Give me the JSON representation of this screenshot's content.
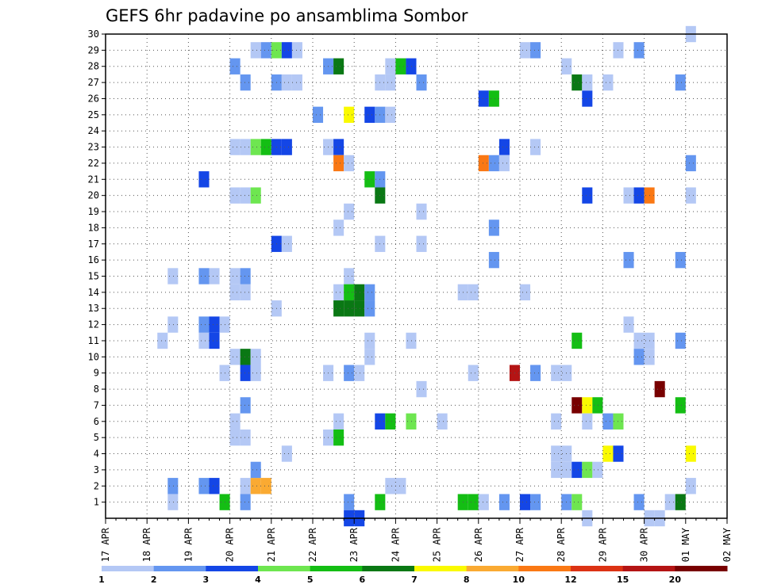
{
  "chart_data": {
    "type": "heatmap",
    "title": "GEFS 6hr padavine po ansamblima Sombor",
    "xlabel": "",
    "ylabel": "",
    "x_tick_labels": [
      "17 APR",
      "18 APR",
      "19 APR",
      "20 APR",
      "21 APR",
      "22 APR",
      "23 APR",
      "24 APR",
      "25 APR",
      "26 APR",
      "27 APR",
      "28 APR",
      "29 APR",
      "30 APR",
      "01 MAY",
      "02 MAY"
    ],
    "y_tick_labels": [
      "1",
      "2",
      "3",
      "4",
      "5",
      "6",
      "7",
      "8",
      "9",
      "10",
      "11",
      "12",
      "13",
      "14",
      "15",
      "16",
      "17",
      "18",
      "19",
      "20",
      "21",
      "22",
      "23",
      "24",
      "25",
      "26",
      "27",
      "28",
      "29",
      "30"
    ],
    "xlim": [
      0,
      15
    ],
    "ylim": [
      0,
      30
    ],
    "time_step_days": 0.25,
    "grid": "dotted",
    "legend": {
      "placement": "bottom",
      "labels": [
        "1",
        "2",
        "3",
        "4",
        "5",
        "6",
        "7",
        "8",
        "10",
        "12",
        "15",
        "20"
      ],
      "colors": [
        "#b4c8f5",
        "#6496f0",
        "#1446e6",
        "#6ee650",
        "#14be14",
        "#0a7814",
        "#fafa00",
        "#faaa32",
        "#fa7814",
        "#dc3214",
        "#b41414",
        "#780000"
      ]
    },
    "cells": [
      {
        "day": 1.5,
        "member": 12,
        "class": 0
      },
      {
        "day": 1.5,
        "member": 1,
        "class": 0
      },
      {
        "day": 1.5,
        "member": 2,
        "class": 1
      },
      {
        "day": 1.5,
        "member": 15,
        "class": 0
      },
      {
        "day": 1.25,
        "member": 11,
        "class": 0
      },
      {
        "day": 2.25,
        "member": 11,
        "class": 0
      },
      {
        "day": 2.25,
        "member": 12,
        "class": 1
      },
      {
        "day": 2.25,
        "member": 15,
        "class": 1
      },
      {
        "day": 2.25,
        "member": 2,
        "class": 1
      },
      {
        "day": 2.5,
        "member": 12,
        "class": 2
      },
      {
        "day": 2.5,
        "member": 11,
        "class": 2
      },
      {
        "day": 2.5,
        "member": 2,
        "class": 2
      },
      {
        "day": 2.5,
        "member": 15,
        "class": 0
      },
      {
        "day": 2.75,
        "member": 12,
        "class": 0
      },
      {
        "day": 2.75,
        "member": 9,
        "class": 0
      },
      {
        "day": 2.75,
        "member": 1,
        "class": 4
      },
      {
        "day": 2.25,
        "member": 21,
        "class": 2
      },
      {
        "day": 3.0,
        "member": 10,
        "class": 0
      },
      {
        "day": 3.0,
        "member": 6,
        "class": 0
      },
      {
        "day": 3.0,
        "member": 5,
        "class": 0
      },
      {
        "day": 3.0,
        "member": 14,
        "class": 0
      },
      {
        "day": 3.0,
        "member": 15,
        "class": 0
      },
      {
        "day": 3.0,
        "member": 20,
        "class": 0
      },
      {
        "day": 3.0,
        "member": 23,
        "class": 0
      },
      {
        "day": 3.0,
        "member": 28,
        "class": 1
      },
      {
        "day": 3.25,
        "member": 10,
        "class": 5
      },
      {
        "day": 3.25,
        "member": 9,
        "class": 2
      },
      {
        "day": 3.25,
        "member": 7,
        "class": 1
      },
      {
        "day": 3.25,
        "member": 5,
        "class": 0
      },
      {
        "day": 3.25,
        "member": 2,
        "class": 0
      },
      {
        "day": 3.25,
        "member": 1,
        "class": 1
      },
      {
        "day": 3.25,
        "member": 14,
        "class": 0
      },
      {
        "day": 3.25,
        "member": 15,
        "class": 1
      },
      {
        "day": 3.25,
        "member": 20,
        "class": 0
      },
      {
        "day": 3.25,
        "member": 23,
        "class": 0
      },
      {
        "day": 3.25,
        "member": 27,
        "class": 1
      },
      {
        "day": 3.5,
        "member": 10,
        "class": 0
      },
      {
        "day": 3.5,
        "member": 9,
        "class": 0
      },
      {
        "day": 3.5,
        "member": 2,
        "class": 7
      },
      {
        "day": 3.5,
        "member": 3,
        "class": 1
      },
      {
        "day": 3.5,
        "member": 20,
        "class": 3
      },
      {
        "day": 3.5,
        "member": 23,
        "class": 3
      },
      {
        "day": 3.5,
        "member": 29,
        "class": 0
      },
      {
        "day": 3.75,
        "member": 2,
        "class": 7
      },
      {
        "day": 3.75,
        "member": 23,
        "class": 4
      },
      {
        "day": 3.75,
        "member": 29,
        "class": 1
      },
      {
        "day": 4.0,
        "member": 13,
        "class": 0
      },
      {
        "day": 4.0,
        "member": 17,
        "class": 2
      },
      {
        "day": 4.0,
        "member": 23,
        "class": 2
      },
      {
        "day": 4.0,
        "member": 27,
        "class": 1
      },
      {
        "day": 4.0,
        "member": 29,
        "class": 3
      },
      {
        "day": 4.25,
        "member": 17,
        "class": 0
      },
      {
        "day": 4.25,
        "member": 4,
        "class": 0
      },
      {
        "day": 4.25,
        "member": 29,
        "class": 2
      },
      {
        "day": 4.25,
        "member": 27,
        "class": 0
      },
      {
        "day": 4.25,
        "member": 23,
        "class": 2
      },
      {
        "day": 4.5,
        "member": 27,
        "class": 0
      },
      {
        "day": 4.5,
        "member": 29,
        "class": 0
      },
      {
        "day": 5.0,
        "member": 25,
        "class": 1
      },
      {
        "day": 5.25,
        "member": 28,
        "class": 1
      },
      {
        "day": 5.25,
        "member": 23,
        "class": 0
      },
      {
        "day": 5.25,
        "member": 9,
        "class": 0
      },
      {
        "day": 5.25,
        "member": 5,
        "class": 0
      },
      {
        "day": 5.5,
        "member": 28,
        "class": 5
      },
      {
        "day": 5.5,
        "member": 23,
        "class": 2
      },
      {
        "day": 5.5,
        "member": 22,
        "class": 8
      },
      {
        "day": 5.5,
        "member": 18,
        "class": 0
      },
      {
        "day": 5.5,
        "member": 14,
        "class": 0
      },
      {
        "day": 5.5,
        "member": 13,
        "class": 5
      },
      {
        "day": 5.5,
        "member": 6,
        "class": 0
      },
      {
        "day": 5.5,
        "member": 5,
        "class": 4
      },
      {
        "day": 5.75,
        "member": 25,
        "class": 6
      },
      {
        "day": 5.75,
        "member": 22,
        "class": 0
      },
      {
        "day": 5.75,
        "member": 19,
        "class": 0
      },
      {
        "day": 5.75,
        "member": 15,
        "class": 0
      },
      {
        "day": 5.75,
        "member": 14,
        "class": 4
      },
      {
        "day": 5.75,
        "member": 13,
        "class": 5
      },
      {
        "day": 5.75,
        "member": 9,
        "class": 1
      },
      {
        "day": 5.75,
        "member": 1,
        "class": 1
      },
      {
        "day": 5.75,
        "member": 0,
        "class": 2
      },
      {
        "day": 6.0,
        "member": 14,
        "class": 5
      },
      {
        "day": 6.0,
        "member": 13,
        "class": 5
      },
      {
        "day": 6.0,
        "member": 9,
        "class": 0
      },
      {
        "day": 6.0,
        "member": 0,
        "class": 2
      },
      {
        "day": 6.25,
        "member": 25,
        "class": 2
      },
      {
        "day": 6.25,
        "member": 21,
        "class": 4
      },
      {
        "day": 6.25,
        "member": 14,
        "class": 1
      },
      {
        "day": 6.25,
        "member": 13,
        "class": 1
      },
      {
        "day": 6.25,
        "member": 11,
        "class": 0
      },
      {
        "day": 6.25,
        "member": 10,
        "class": 0
      },
      {
        "day": 6.5,
        "member": 27,
        "class": 0
      },
      {
        "day": 6.5,
        "member": 25,
        "class": 1
      },
      {
        "day": 6.5,
        "member": 21,
        "class": 1
      },
      {
        "day": 6.5,
        "member": 20,
        "class": 5
      },
      {
        "day": 6.5,
        "member": 17,
        "class": 0
      },
      {
        "day": 6.5,
        "member": 6,
        "class": 2
      },
      {
        "day": 6.5,
        "member": 1,
        "class": 4
      },
      {
        "day": 6.75,
        "member": 28,
        "class": 0
      },
      {
        "day": 6.75,
        "member": 27,
        "class": 0
      },
      {
        "day": 6.75,
        "member": 25,
        "class": 0
      },
      {
        "day": 6.75,
        "member": 6,
        "class": 4
      },
      {
        "day": 6.75,
        "member": 2,
        "class": 0
      },
      {
        "day": 7.0,
        "member": 28,
        "class": 4
      },
      {
        "day": 7.0,
        "member": 2,
        "class": 0
      },
      {
        "day": 7.25,
        "member": 28,
        "class": 2
      },
      {
        "day": 7.25,
        "member": 11,
        "class": 0
      },
      {
        "day": 7.25,
        "member": 6,
        "class": 3
      },
      {
        "day": 7.5,
        "member": 27,
        "class": 1
      },
      {
        "day": 7.5,
        "member": 19,
        "class": 0
      },
      {
        "day": 7.5,
        "member": 17,
        "class": 0
      },
      {
        "day": 7.5,
        "member": 8,
        "class": 0
      },
      {
        "day": 8.0,
        "member": 6,
        "class": 0
      },
      {
        "day": 8.5,
        "member": 14,
        "class": 0
      },
      {
        "day": 8.5,
        "member": 1,
        "class": 4
      },
      {
        "day": 8.75,
        "member": 14,
        "class": 0
      },
      {
        "day": 8.75,
        "member": 9,
        "class": 0
      },
      {
        "day": 8.75,
        "member": 1,
        "class": 4
      },
      {
        "day": 9.0,
        "member": 26,
        "class": 2
      },
      {
        "day": 9.0,
        "member": 22,
        "class": 8
      },
      {
        "day": 9.0,
        "member": 1,
        "class": 0
      },
      {
        "day": 9.25,
        "member": 26,
        "class": 4
      },
      {
        "day": 9.25,
        "member": 22,
        "class": 1
      },
      {
        "day": 9.25,
        "member": 18,
        "class": 1
      },
      {
        "day": 9.25,
        "member": 16,
        "class": 1
      },
      {
        "day": 9.5,
        "member": 23,
        "class": 2
      },
      {
        "day": 9.5,
        "member": 22,
        "class": 0
      },
      {
        "day": 9.5,
        "member": 1,
        "class": 1
      },
      {
        "day": 9.75,
        "member": 9,
        "class": 10
      },
      {
        "day": 10.0,
        "member": 29,
        "class": 0
      },
      {
        "day": 10.0,
        "member": 14,
        "class": 0
      },
      {
        "day": 10.0,
        "member": 1,
        "class": 2
      },
      {
        "day": 10.25,
        "member": 29,
        "class": 1
      },
      {
        "day": 10.25,
        "member": 23,
        "class": 0
      },
      {
        "day": 10.25,
        "member": 9,
        "class": 1
      },
      {
        "day": 10.25,
        "member": 1,
        "class": 1
      },
      {
        "day": 10.75,
        "member": 9,
        "class": 0
      },
      {
        "day": 10.75,
        "member": 4,
        "class": 0
      },
      {
        "day": 10.75,
        "member": 3,
        "class": 0
      },
      {
        "day": 10.75,
        "member": 6,
        "class": 0
      },
      {
        "day": 11.0,
        "member": 9,
        "class": 0
      },
      {
        "day": 11.0,
        "member": 4,
        "class": 0
      },
      {
        "day": 11.0,
        "member": 3,
        "class": 0
      },
      {
        "day": 11.0,
        "member": 28,
        "class": 0
      },
      {
        "day": 11.0,
        "member": 1,
        "class": 1
      },
      {
        "day": 11.25,
        "member": 27,
        "class": 5
      },
      {
        "day": 11.25,
        "member": 11,
        "class": 4
      },
      {
        "day": 11.25,
        "member": 7,
        "class": 11
      },
      {
        "day": 11.25,
        "member": 3,
        "class": 2
      },
      {
        "day": 11.25,
        "member": 1,
        "class": 3
      },
      {
        "day": 11.5,
        "member": 26,
        "class": 2
      },
      {
        "day": 11.5,
        "member": 27,
        "class": 0
      },
      {
        "day": 11.5,
        "member": 20,
        "class": 2
      },
      {
        "day": 11.5,
        "member": 7,
        "class": 6
      },
      {
        "day": 11.5,
        "member": 6,
        "class": 0
      },
      {
        "day": 11.5,
        "member": 3,
        "class": 3
      },
      {
        "day": 11.5,
        "member": 0,
        "class": 0
      },
      {
        "day": 11.75,
        "member": 7,
        "class": 4
      },
      {
        "day": 11.75,
        "member": 3,
        "class": 0
      },
      {
        "day": 12.0,
        "member": 27,
        "class": 0
      },
      {
        "day": 12.0,
        "member": 6,
        "class": 1
      },
      {
        "day": 12.0,
        "member": 4,
        "class": 6
      },
      {
        "day": 12.25,
        "member": 6,
        "class": 3
      },
      {
        "day": 12.25,
        "member": 4,
        "class": 2
      },
      {
        "day": 12.25,
        "member": 29,
        "class": 0
      },
      {
        "day": 12.5,
        "member": 16,
        "class": 1
      },
      {
        "day": 12.5,
        "member": 20,
        "class": 0
      },
      {
        "day": 12.5,
        "member": 12,
        "class": 0
      },
      {
        "day": 12.75,
        "member": 29,
        "class": 1
      },
      {
        "day": 12.75,
        "member": 20,
        "class": 2
      },
      {
        "day": 12.75,
        "member": 11,
        "class": 0
      },
      {
        "day": 12.75,
        "member": 10,
        "class": 1
      },
      {
        "day": 12.75,
        "member": 1,
        "class": 1
      },
      {
        "day": 13.0,
        "member": 20,
        "class": 8
      },
      {
        "day": 13.0,
        "member": 11,
        "class": 0
      },
      {
        "day": 13.0,
        "member": 10,
        "class": 0
      },
      {
        "day": 13.0,
        "member": 0,
        "class": 0
      },
      {
        "day": 13.25,
        "member": 8,
        "class": 11
      },
      {
        "day": 13.25,
        "member": 0,
        "class": 0
      },
      {
        "day": 13.5,
        "member": 1,
        "class": 0
      },
      {
        "day": 13.75,
        "member": 27,
        "class": 1
      },
      {
        "day": 13.75,
        "member": 16,
        "class": 1
      },
      {
        "day": 13.75,
        "member": 11,
        "class": 1
      },
      {
        "day": 13.75,
        "member": 7,
        "class": 4
      },
      {
        "day": 13.75,
        "member": 1,
        "class": 5
      },
      {
        "day": 14.0,
        "member": 30,
        "class": 0
      },
      {
        "day": 14.0,
        "member": 22,
        "class": 1
      },
      {
        "day": 14.0,
        "member": 20,
        "class": 0
      },
      {
        "day": 14.0,
        "member": 4,
        "class": 6
      },
      {
        "day": 14.0,
        "member": 2,
        "class": 0
      }
    ]
  }
}
